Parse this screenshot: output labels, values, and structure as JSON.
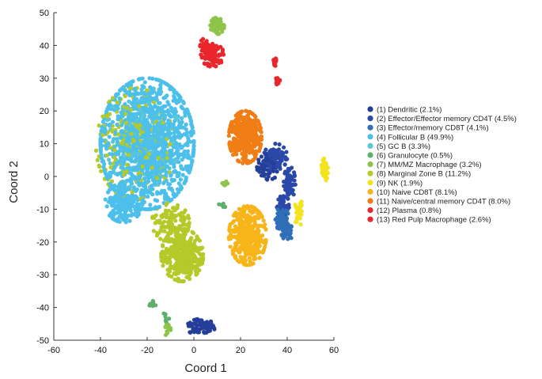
{
  "chart_data": {
    "type": "scatter",
    "xlabel": "Coord 1",
    "ylabel": "Coord 2",
    "xlim": [
      -60,
      60
    ],
    "ylim": [
      -50,
      50
    ],
    "xticks": [
      -60,
      -40,
      -20,
      0,
      20,
      40,
      60
    ],
    "yticks": [
      -50,
      -40,
      -30,
      -20,
      -10,
      0,
      10,
      20,
      30,
      40,
      50
    ],
    "grid": false,
    "legend_position": "right",
    "series": [
      {
        "name": "(1) Dendritic (2.1%)",
        "color": "#243f99",
        "clusters": [
          {
            "cx": 32,
            "cy": 3,
            "rx": 5,
            "ry": 4,
            "n": 60
          },
          {
            "cx": 3,
            "cy": -46,
            "rx": 6,
            "ry": 2.5,
            "n": 70
          }
        ]
      },
      {
        "name": "(2) Effector/Effector memory CD4T (4.5%)",
        "color": "#2a48a8",
        "clusters": [
          {
            "cx": 35,
            "cy": 6,
            "rx": 5,
            "ry": 4,
            "n": 90
          },
          {
            "cx": 41,
            "cy": -2,
            "rx": 2.5,
            "ry": 5,
            "n": 60
          },
          {
            "cx": 38,
            "cy": -9,
            "rx": 3,
            "ry": 3,
            "n": 40
          }
        ]
      },
      {
        "name": "(3) Effector/memory CD8T (4.1%)",
        "color": "#2f6fb8",
        "clusters": [
          {
            "cx": 38,
            "cy": -13,
            "rx": 3,
            "ry": 4,
            "n": 90
          },
          {
            "cx": 40,
            "cy": -17,
            "rx": 2.5,
            "ry": 2.5,
            "n": 40
          }
        ]
      },
      {
        "name": "(4) Follicular B (49.9%)",
        "color": "#4cc0ea",
        "clusters": [
          {
            "cx": -20,
            "cy": 10,
            "rx": 20,
            "ry": 20,
            "n": 1300
          },
          {
            "cx": -30,
            "cy": -8,
            "rx": 8,
            "ry": 6,
            "n": 200
          }
        ]
      },
      {
        "name": "(5) GC B (3.3%)",
        "color": "#5cc6d6",
        "clusters": [
          {
            "cx": -22,
            "cy": 12,
            "rx": 16,
            "ry": 16,
            "n": 100
          }
        ]
      },
      {
        "name": "(6) Granulocyte (0.5%)",
        "color": "#5daf6a",
        "clusters": [
          {
            "cx": -18,
            "cy": -39,
            "rx": 2,
            "ry": 1,
            "n": 10
          },
          {
            "cx": -12,
            "cy": -43,
            "rx": 1.5,
            "ry": 2,
            "n": 8
          },
          {
            "cx": 12,
            "cy": -9,
            "rx": 1.5,
            "ry": 1,
            "n": 6
          }
        ]
      },
      {
        "name": "(7) MM/MZ Macrophage (3.2%)",
        "color": "#8dc449",
        "clusters": [
          {
            "cx": 10,
            "cy": 46,
            "rx": 3,
            "ry": 2.5,
            "n": 60
          },
          {
            "cx": -11,
            "cy": -47,
            "rx": 1.5,
            "ry": 2,
            "n": 12
          },
          {
            "cx": 13,
            "cy": -2,
            "rx": 1.5,
            "ry": 1,
            "n": 8
          }
        ]
      },
      {
        "name": "(8) Marginal Zone B (11.2%)",
        "color": "#b5c928",
        "clusters": [
          {
            "cx": -5,
            "cy": -24,
            "rx": 9,
            "ry": 8,
            "n": 380
          },
          {
            "cx": -10,
            "cy": -14,
            "rx": 8,
            "ry": 6,
            "n": 120
          },
          {
            "cx": -25,
            "cy": 10,
            "rx": 17,
            "ry": 17,
            "n": 220
          }
        ]
      },
      {
        "name": "(9) NK (1.9%)",
        "color": "#f4e420",
        "clusters": [
          {
            "cx": 56,
            "cy": 2,
            "rx": 1.5,
            "ry": 3.5,
            "n": 60
          },
          {
            "cx": 45,
            "cy": -11,
            "rx": 2,
            "ry": 4,
            "n": 30
          }
        ]
      },
      {
        "name": "(10) Naive CD8T (8.1%)",
        "color": "#f8b519",
        "clusters": [
          {
            "cx": 23,
            "cy": -18,
            "rx": 8,
            "ry": 9,
            "n": 360
          }
        ]
      },
      {
        "name": "(11) Naive/central memory CD4T (8.0%)",
        "color": "#f07d15",
        "clusters": [
          {
            "cx": 22,
            "cy": 12,
            "rx": 7,
            "ry": 8,
            "n": 360
          }
        ]
      },
      {
        "name": "(12) Plasma (0.8%)",
        "color": "#e8262b",
        "clusters": [
          {
            "cx": 4,
            "cy": 40,
            "rx": 2,
            "ry": 2,
            "n": 20
          },
          {
            "cx": 35,
            "cy": 35,
            "rx": 1,
            "ry": 1.2,
            "n": 14
          },
          {
            "cx": 36,
            "cy": 29,
            "rx": 1,
            "ry": 1.5,
            "n": 14
          }
        ]
      },
      {
        "name": "(13) Red Pulp Macrophage (2.6%)",
        "color": "#e8262b",
        "clusters": [
          {
            "cx": 8,
            "cy": 37,
            "rx": 5,
            "ry": 3.5,
            "n": 80
          }
        ]
      }
    ]
  }
}
